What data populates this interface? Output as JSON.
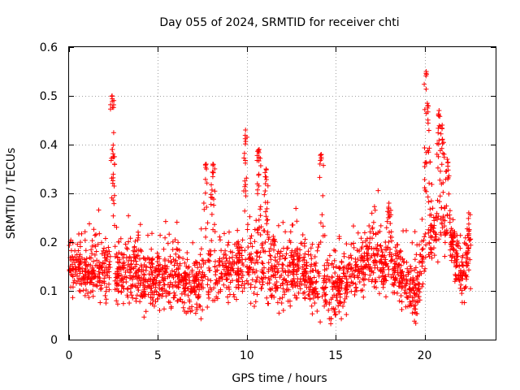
{
  "chart_data": {
    "type": "scatter",
    "title": "Day 055 of 2024, SRMTID for receiver chti",
    "xlabel": "GPS time / hours",
    "ylabel": "SRMTID / TECUs",
    "xlim": [
      0,
      24
    ],
    "ylim": [
      0,
      0.6
    ],
    "xticks": [
      0,
      5,
      10,
      15,
      20
    ],
    "xtick_labels": [
      "0",
      "5",
      "10",
      "15",
      "20"
    ],
    "yticks": [
      0,
      0.1,
      0.2,
      0.3,
      0.4,
      0.5,
      0.6
    ],
    "ytick_labels": [
      "0",
      "0.1",
      "0.2",
      "0.3",
      "0.4",
      "0.5",
      "0.6"
    ],
    "grid": true,
    "marker": "plus",
    "color": "#ff0000",
    "series": [
      {
        "name": "SRMTID",
        "x_range": [
          0.0,
          22.6
        ],
        "base_profile": [
          [
            0.0,
            0.15
          ],
          [
            1.0,
            0.14
          ],
          [
            2.0,
            0.13
          ],
          [
            3.0,
            0.14
          ],
          [
            4.0,
            0.13
          ],
          [
            5.0,
            0.12
          ],
          [
            6.0,
            0.13
          ],
          [
            7.0,
            0.11
          ],
          [
            8.0,
            0.13
          ],
          [
            9.0,
            0.14
          ],
          [
            10.0,
            0.15
          ],
          [
            11.0,
            0.14
          ],
          [
            12.0,
            0.13
          ],
          [
            13.0,
            0.14
          ],
          [
            14.0,
            0.11
          ],
          [
            15.0,
            0.1
          ],
          [
            16.0,
            0.13
          ],
          [
            17.0,
            0.17
          ],
          [
            18.0,
            0.16
          ],
          [
            19.0,
            0.12
          ],
          [
            19.5,
            0.09
          ],
          [
            20.0,
            0.18
          ],
          [
            20.5,
            0.22
          ],
          [
            21.0,
            0.25
          ],
          [
            21.5,
            0.2
          ],
          [
            22.0,
            0.14
          ],
          [
            22.6,
            0.15
          ]
        ],
        "peaks": [
          {
            "x": 2.45,
            "y": 0.5
          },
          {
            "x": 2.45,
            "y": 0.39
          },
          {
            "x": 7.7,
            "y": 0.36
          },
          {
            "x": 8.1,
            "y": 0.36
          },
          {
            "x": 9.9,
            "y": 0.43
          },
          {
            "x": 10.7,
            "y": 0.39
          },
          {
            "x": 11.1,
            "y": 0.35
          },
          {
            "x": 14.2,
            "y": 0.38
          },
          {
            "x": 18.0,
            "y": 0.28
          },
          {
            "x": 20.1,
            "y": 0.55
          },
          {
            "x": 20.2,
            "y": 0.48
          },
          {
            "x": 20.8,
            "y": 0.47
          },
          {
            "x": 21.0,
            "y": 0.44
          },
          {
            "x": 21.3,
            "y": 0.37
          },
          {
            "x": 22.5,
            "y": 0.26
          }
        ]
      }
    ]
  }
}
